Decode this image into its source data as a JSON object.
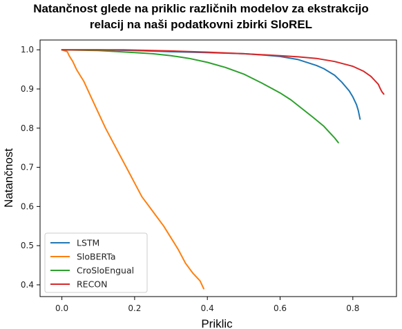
{
  "chart_data": {
    "type": "line",
    "title_lines": [
      "Natančnost glede na priklic različnih modelov za ekstrakcijo",
      "relacij na naši podatkovni zbirki SloREL"
    ],
    "xlabel": "Priklic",
    "ylabel": "Natančnost",
    "xlim": [
      -0.06,
      0.92
    ],
    "ylim": [
      0.37,
      1.025
    ],
    "xticks": [
      0.0,
      0.2,
      0.4,
      0.6,
      0.8
    ],
    "xtick_labels": [
      "0.0",
      "0.2",
      "0.4",
      "0.6",
      "0.8"
    ],
    "yticks": [
      0.4,
      0.5,
      0.6,
      0.7,
      0.8,
      0.9,
      1.0
    ],
    "ytick_labels": [
      "0.4",
      "0.5",
      "0.6",
      "0.7",
      "0.8",
      "0.9",
      "1.0"
    ],
    "grid": false,
    "legend_position": "lower-left",
    "series": [
      {
        "name": "LSTM",
        "color": "#1f77b4",
        "points": [
          [
            0.0,
            1.0
          ],
          [
            0.1,
            1.0
          ],
          [
            0.2,
            0.998
          ],
          [
            0.3,
            0.995
          ],
          [
            0.4,
            0.993
          ],
          [
            0.5,
            0.99
          ],
          [
            0.55,
            0.987
          ],
          [
            0.6,
            0.983
          ],
          [
            0.65,
            0.975
          ],
          [
            0.7,
            0.96
          ],
          [
            0.72,
            0.952
          ],
          [
            0.75,
            0.935
          ],
          [
            0.77,
            0.917
          ],
          [
            0.79,
            0.895
          ],
          [
            0.8,
            0.88
          ],
          [
            0.81,
            0.86
          ],
          [
            0.815,
            0.845
          ],
          [
            0.82,
            0.823
          ]
        ]
      },
      {
        "name": "SloBERTa",
        "color": "#ff7f0e",
        "points": [
          [
            0.0,
            1.0
          ],
          [
            0.015,
            0.995
          ],
          [
            0.02,
            0.985
          ],
          [
            0.03,
            0.97
          ],
          [
            0.04,
            0.95
          ],
          [
            0.05,
            0.935
          ],
          [
            0.06,
            0.92
          ],
          [
            0.08,
            0.88
          ],
          [
            0.1,
            0.84
          ],
          [
            0.12,
            0.8
          ],
          [
            0.14,
            0.765
          ],
          [
            0.16,
            0.73
          ],
          [
            0.18,
            0.695
          ],
          [
            0.2,
            0.66
          ],
          [
            0.22,
            0.625
          ],
          [
            0.24,
            0.6
          ],
          [
            0.26,
            0.575
          ],
          [
            0.28,
            0.55
          ],
          [
            0.3,
            0.52
          ],
          [
            0.32,
            0.49
          ],
          [
            0.34,
            0.455
          ],
          [
            0.36,
            0.43
          ],
          [
            0.38,
            0.41
          ],
          [
            0.39,
            0.39
          ]
        ]
      },
      {
        "name": "CroSloEngual",
        "color": "#2ca02c",
        "points": [
          [
            0.0,
            1.0
          ],
          [
            0.1,
            0.998
          ],
          [
            0.2,
            0.993
          ],
          [
            0.25,
            0.99
          ],
          [
            0.3,
            0.985
          ],
          [
            0.35,
            0.978
          ],
          [
            0.4,
            0.968
          ],
          [
            0.45,
            0.955
          ],
          [
            0.5,
            0.938
          ],
          [
            0.55,
            0.915
          ],
          [
            0.6,
            0.89
          ],
          [
            0.63,
            0.872
          ],
          [
            0.66,
            0.85
          ],
          [
            0.69,
            0.828
          ],
          [
            0.72,
            0.805
          ],
          [
            0.74,
            0.785
          ],
          [
            0.75,
            0.775
          ],
          [
            0.76,
            0.763
          ]
        ]
      },
      {
        "name": "RECON",
        "color": "#d62728",
        "points": [
          [
            0.0,
            1.0
          ],
          [
            0.17,
            1.0
          ],
          [
            0.3,
            0.997
          ],
          [
            0.4,
            0.994
          ],
          [
            0.5,
            0.99
          ],
          [
            0.6,
            0.985
          ],
          [
            0.65,
            0.982
          ],
          [
            0.7,
            0.978
          ],
          [
            0.75,
            0.97
          ],
          [
            0.8,
            0.958
          ],
          [
            0.83,
            0.945
          ],
          [
            0.85,
            0.932
          ],
          [
            0.86,
            0.922
          ],
          [
            0.87,
            0.912
          ],
          [
            0.875,
            0.902
          ],
          [
            0.88,
            0.893
          ],
          [
            0.885,
            0.887
          ]
        ]
      }
    ]
  }
}
